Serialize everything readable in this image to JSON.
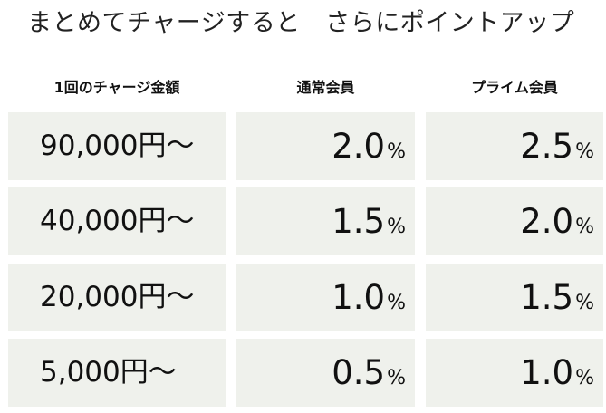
{
  "title": "まとめてチャージすると　さらにポイントアップ",
  "headers": {
    "amount": "1回のチャージ金額",
    "normal": "通常会員",
    "prime": "プライム会員"
  },
  "percent_sign": "%",
  "rows": [
    {
      "amount": "90,000円～",
      "normal": "2.0",
      "prime": "2.5"
    },
    {
      "amount": "40,000円～",
      "normal": "1.5",
      "prime": "2.0"
    },
    {
      "amount": "20,000円～",
      "normal": "1.0",
      "prime": "1.5"
    },
    {
      "amount": "5,000円～",
      "normal": "0.5",
      "prime": "1.0"
    }
  ],
  "colors": {
    "cell_background": "#eff1ec",
    "text": "#111111"
  }
}
